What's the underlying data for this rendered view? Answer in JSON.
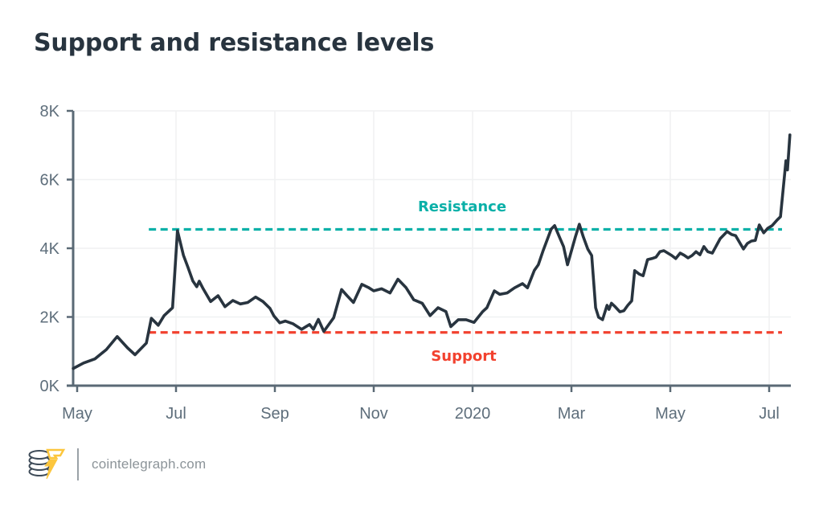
{
  "header": {
    "title": "Support and resistance levels",
    "title_color": "#28343f"
  },
  "footer": {
    "site": "cointelegraph.com",
    "text_color": "#8c9499",
    "logo_coin_color": "#3f4c59",
    "logo_bolt_color": "#fcc63d"
  },
  "chart_data": {
    "type": "line",
    "title": "Support and resistance levels",
    "xlabel": "",
    "ylabel": "",
    "x_tick_labels": [
      "May",
      "Jul",
      "Sep",
      "Nov",
      "2020",
      "Mar",
      "May",
      "Jul"
    ],
    "x_tick_months": [
      0,
      2,
      4,
      6,
      8,
      10,
      12,
      14
    ],
    "y_ticks": [
      0,
      2,
      4,
      6,
      8
    ],
    "y_tick_labels": [
      "0K",
      "2K",
      "4K",
      "6K",
      "8K"
    ],
    "ylim": [
      0,
      8
    ],
    "xlim": [
      -0.1,
      14.45
    ],
    "grid": true,
    "grid_color": "#f0f1f2",
    "axis_color": "#5a6975",
    "tick_label_color": "#5e6e7b",
    "legend_position": "none",
    "levels": {
      "resistance": {
        "label": "Resistance",
        "value": 4.55,
        "color": "#0ab0a8",
        "x_start": 1.45,
        "x_end": 14.26
      },
      "support": {
        "label": "Support",
        "value": 1.55,
        "color": "#f2412e",
        "x_start": 1.45,
        "x_end": 14.26
      }
    },
    "series": [
      {
        "name": "price",
        "color": "#28343f",
        "points": [
          [
            -0.08,
            0.5
          ],
          [
            0.13,
            0.66
          ],
          [
            0.36,
            0.78
          ],
          [
            0.59,
            1.05
          ],
          [
            0.81,
            1.43
          ],
          [
            1.02,
            1.1
          ],
          [
            1.17,
            0.9
          ],
          [
            1.4,
            1.24
          ],
          [
            1.5,
            1.96
          ],
          [
            1.64,
            1.76
          ],
          [
            1.76,
            2.04
          ],
          [
            1.93,
            2.27
          ],
          [
            2.03,
            4.51
          ],
          [
            2.15,
            3.8
          ],
          [
            2.24,
            3.45
          ],
          [
            2.34,
            3.05
          ],
          [
            2.42,
            2.88
          ],
          [
            2.47,
            3.04
          ],
          [
            2.55,
            2.82
          ],
          [
            2.7,
            2.45
          ],
          [
            2.85,
            2.62
          ],
          [
            2.99,
            2.3
          ],
          [
            3.15,
            2.48
          ],
          [
            3.3,
            2.38
          ],
          [
            3.45,
            2.42
          ],
          [
            3.61,
            2.58
          ],
          [
            3.76,
            2.45
          ],
          [
            3.9,
            2.25
          ],
          [
            3.98,
            2.03
          ],
          [
            4.1,
            1.83
          ],
          [
            4.21,
            1.88
          ],
          [
            4.37,
            1.8
          ],
          [
            4.54,
            1.64
          ],
          [
            4.7,
            1.78
          ],
          [
            4.78,
            1.64
          ],
          [
            4.88,
            1.93
          ],
          [
            4.99,
            1.58
          ],
          [
            5.19,
            1.98
          ],
          [
            5.35,
            2.8
          ],
          [
            5.46,
            2.62
          ],
          [
            5.59,
            2.42
          ],
          [
            5.76,
            2.95
          ],
          [
            5.89,
            2.86
          ],
          [
            6.0,
            2.76
          ],
          [
            6.16,
            2.82
          ],
          [
            6.33,
            2.7
          ],
          [
            6.49,
            3.1
          ],
          [
            6.65,
            2.86
          ],
          [
            6.81,
            2.5
          ],
          [
            6.98,
            2.4
          ],
          [
            7.14,
            2.04
          ],
          [
            7.3,
            2.27
          ],
          [
            7.46,
            2.16
          ],
          [
            7.56,
            1.72
          ],
          [
            7.71,
            1.92
          ],
          [
            7.87,
            1.92
          ],
          [
            8.03,
            1.84
          ],
          [
            8.2,
            2.15
          ],
          [
            8.29,
            2.27
          ],
          [
            8.44,
            2.76
          ],
          [
            8.55,
            2.66
          ],
          [
            8.7,
            2.7
          ],
          [
            8.85,
            2.85
          ],
          [
            9.01,
            2.97
          ],
          [
            9.11,
            2.85
          ],
          [
            9.25,
            3.36
          ],
          [
            9.33,
            3.52
          ],
          [
            9.43,
            3.94
          ],
          [
            9.59,
            4.56
          ],
          [
            9.66,
            4.66
          ],
          [
            9.76,
            4.32
          ],
          [
            9.84,
            4.05
          ],
          [
            9.92,
            3.52
          ],
          [
            10.08,
            4.33
          ],
          [
            10.16,
            4.7
          ],
          [
            10.24,
            4.33
          ],
          [
            10.33,
            3.98
          ],
          [
            10.41,
            3.79
          ],
          [
            10.49,
            2.27
          ],
          [
            10.55,
            1.99
          ],
          [
            10.63,
            1.92
          ],
          [
            10.72,
            2.34
          ],
          [
            10.76,
            2.22
          ],
          [
            10.81,
            2.4
          ],
          [
            10.89,
            2.29
          ],
          [
            10.98,
            2.15
          ],
          [
            11.06,
            2.18
          ],
          [
            11.14,
            2.34
          ],
          [
            11.22,
            2.47
          ],
          [
            11.28,
            3.35
          ],
          [
            11.37,
            3.25
          ],
          [
            11.45,
            3.2
          ],
          [
            11.54,
            3.67
          ],
          [
            11.63,
            3.7
          ],
          [
            11.71,
            3.74
          ],
          [
            11.79,
            3.9
          ],
          [
            11.87,
            3.93
          ],
          [
            11.95,
            3.86
          ],
          [
            12.03,
            3.79
          ],
          [
            12.11,
            3.7
          ],
          [
            12.2,
            3.86
          ],
          [
            12.28,
            3.8
          ],
          [
            12.36,
            3.72
          ],
          [
            12.44,
            3.79
          ],
          [
            12.52,
            3.9
          ],
          [
            12.6,
            3.81
          ],
          [
            12.68,
            4.05
          ],
          [
            12.76,
            3.9
          ],
          [
            12.85,
            3.86
          ],
          [
            13.01,
            4.28
          ],
          [
            13.15,
            4.49
          ],
          [
            13.24,
            4.4
          ],
          [
            13.32,
            4.37
          ],
          [
            13.48,
            3.98
          ],
          [
            13.56,
            4.14
          ],
          [
            13.64,
            4.21
          ],
          [
            13.72,
            4.23
          ],
          [
            13.8,
            4.68
          ],
          [
            13.89,
            4.45
          ],
          [
            13.97,
            4.58
          ],
          [
            14.06,
            4.66
          ],
          [
            14.16,
            4.82
          ],
          [
            14.23,
            4.92
          ],
          [
            14.34,
            6.55
          ],
          [
            14.37,
            6.28
          ],
          [
            14.42,
            7.3
          ]
        ]
      }
    ]
  }
}
